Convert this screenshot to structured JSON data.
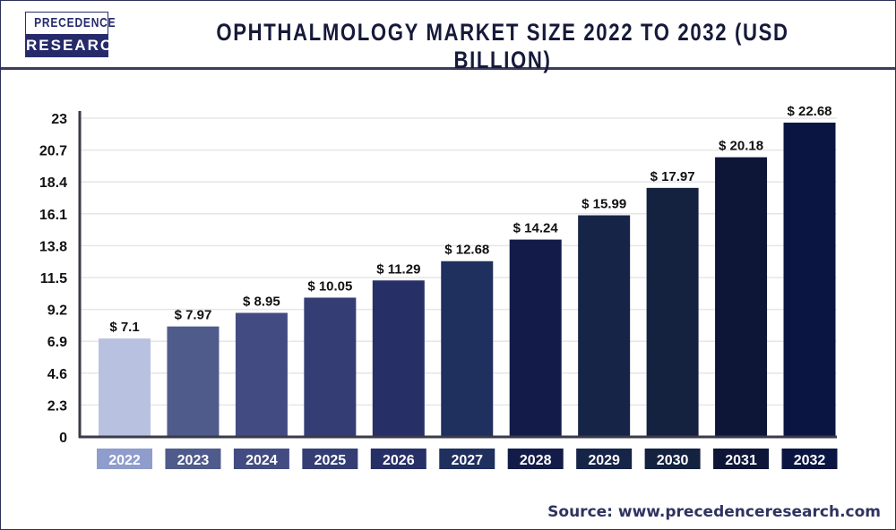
{
  "logo": {
    "line1": "PRECEDENCE",
    "line2": "RESEARCH"
  },
  "title": "OPHTHALMOLOGY MARKET SIZE 2022 TO 2032 (USD BILLION)",
  "source": "Source: www.precedenceresearch.com",
  "chart_data": {
    "type": "bar",
    "title": "OPHTHALMOLOGY MARKET SIZE 2022 TO 2032 (USD BILLION)",
    "categories": [
      "2022",
      "2023",
      "2024",
      "2025",
      "2026",
      "2027",
      "2028",
      "2029",
      "2030",
      "2031",
      "2032"
    ],
    "values": [
      7.1,
      7.97,
      8.95,
      10.05,
      11.29,
      12.68,
      14.24,
      15.99,
      17.97,
      20.18,
      22.68
    ],
    "data_labels": [
      "$ 7.1",
      "$ 7.97",
      "$ 8.95",
      "$ 10.05",
      "$ 11.29",
      "$ 12.68",
      "$ 14.24",
      "$ 15.99",
      "$ 17.97",
      "$ 20.18",
      "$ 22.68"
    ],
    "yticks": [
      0,
      2.3,
      4.6,
      6.9,
      9.2,
      11.5,
      13.8,
      16.1,
      18.4,
      20.7,
      23
    ],
    "ylim": [
      0,
      23
    ],
    "grid": true,
    "xlabel": "",
    "ylabel": "",
    "bar_colors": [
      "#b8c1e0",
      "#4f5b8b",
      "#434c82",
      "#343e74",
      "#272f67",
      "#1f2f5e",
      "#131c48",
      "#162447",
      "#14213f",
      "#0d1637",
      "#0b1542"
    ],
    "label_colors": [
      "#8f9dcc",
      "#4f5b8b",
      "#434c82",
      "#343e74",
      "#272f67",
      "#1f2f5e",
      "#131c48",
      "#162447",
      "#14213f",
      "#0d1637",
      "#0b1542"
    ]
  }
}
